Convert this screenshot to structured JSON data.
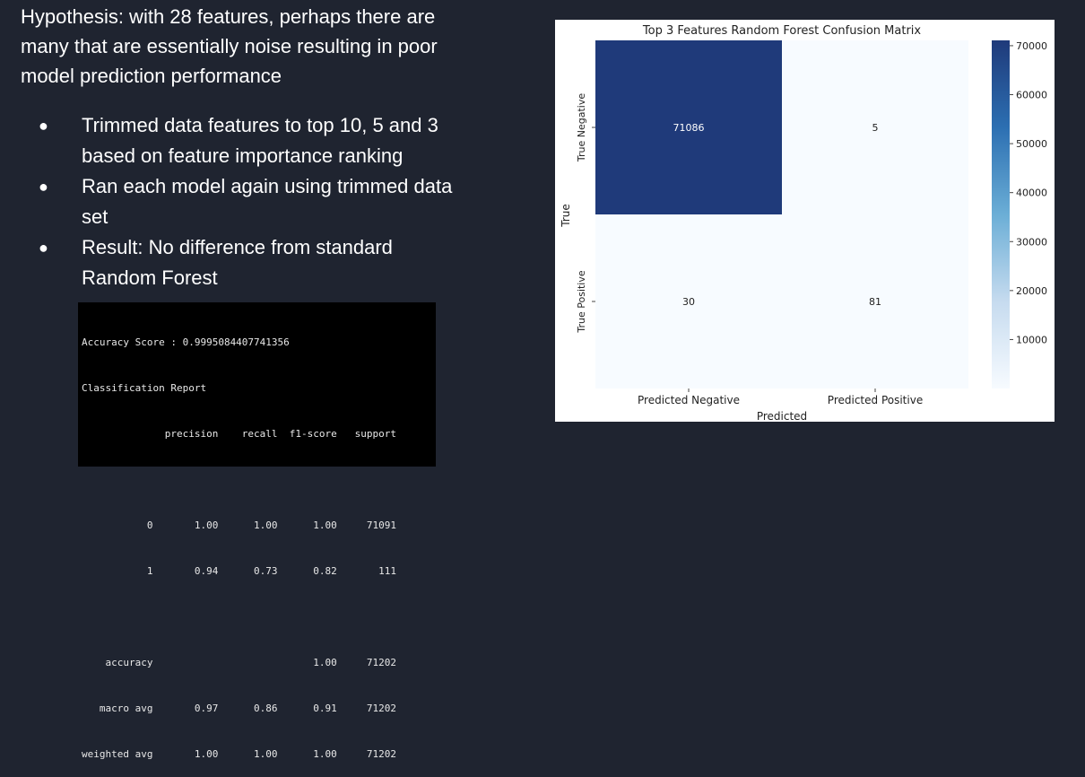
{
  "slide": {
    "hypothesis": "Hypothesis: with 28 features, perhaps there are many that are essentially noise resulting in poor model prediction performance",
    "bullets": [
      "Trimmed data features to top 10, 5  and 3 based on feature importance ranking",
      "Ran each model again using trimmed data set",
      "Result: No difference from standard Random Forest"
    ],
    "bullet_glyph": "●"
  },
  "report": {
    "lines": [
      "Accuracy Score : 0.9995084407741356",
      "Classification Report",
      "              precision    recall  f1-score   support",
      "",
      "           0       1.00      1.00      1.00     71091",
      "           1       0.94      0.73      0.82       111",
      "",
      "    accuracy                           1.00     71202",
      "   macro avg       0.97      0.86      0.91     71202",
      "weighted avg       1.00      1.00      1.00     71202"
    ]
  },
  "chart_data": {
    "type": "heatmap",
    "title": "Top 3 Features Random Forest Confusion Matrix",
    "xlabel": "Predicted",
    "ylabel": "True",
    "x_categories": [
      "Predicted Negative",
      "Predicted Positive"
    ],
    "y_categories": [
      "True Negative",
      "True Positive"
    ],
    "values": [
      [
        71086,
        5
      ],
      [
        30,
        81
      ]
    ],
    "colorbar": {
      "ticks": [
        10000,
        20000,
        30000,
        40000,
        50000,
        60000,
        70000
      ],
      "range": [
        5,
        71086
      ],
      "colormap": "Blues"
    },
    "colors": {
      "low": "#f7fbff",
      "high": "#1f3a7a"
    }
  }
}
